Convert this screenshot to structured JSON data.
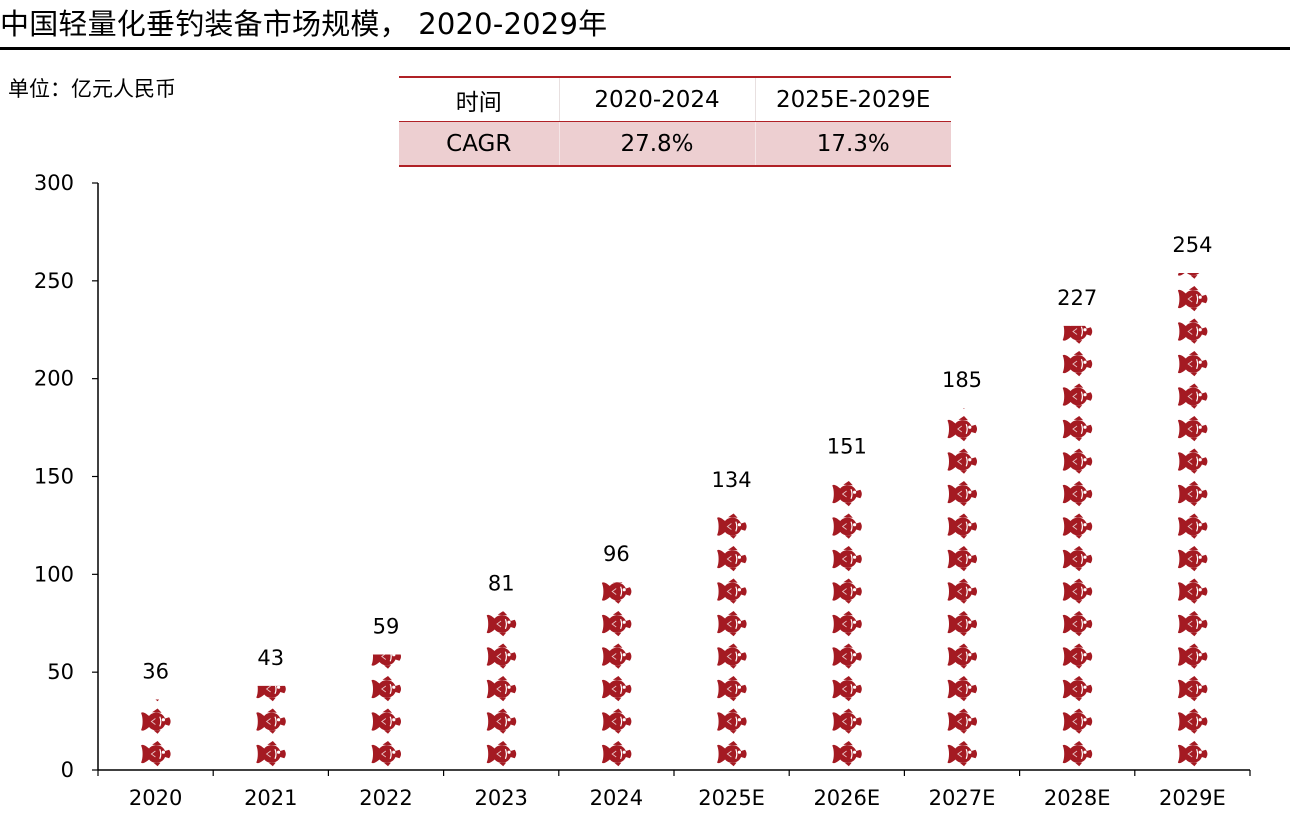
{
  "header": {
    "title": "中国轻量化垂钓装备市场规模， 2020-2029年",
    "unit": "单位：亿元人民币"
  },
  "cagr_table": {
    "headers": [
      "时间",
      "2020-2024",
      "2025E-2029E"
    ],
    "row": [
      "CAGR",
      "27.8%",
      "17.3%"
    ],
    "colors": {
      "border": "#b02126",
      "fill": "#edcfd1"
    }
  },
  "colors": {
    "fish": "#a41a22",
    "axis": "#000000"
  },
  "icon": "fish-icon",
  "chart_data": {
    "type": "bar",
    "style": "pictograph",
    "categories": [
      "2020",
      "2021",
      "2022",
      "2023",
      "2024",
      "2025E",
      "2026E",
      "2027E",
      "2028E",
      "2029E"
    ],
    "values": [
      36,
      43,
      59,
      81,
      96,
      134,
      151,
      185,
      227,
      254
    ],
    "data_labels": [
      "36",
      "43",
      "59",
      "81",
      "96",
      "134",
      "151",
      "185",
      "227",
      "254"
    ],
    "ylim": [
      0,
      300
    ],
    "yticks": [
      0,
      50,
      100,
      150,
      200,
      250,
      300
    ],
    "grid": false,
    "legend": "none"
  }
}
